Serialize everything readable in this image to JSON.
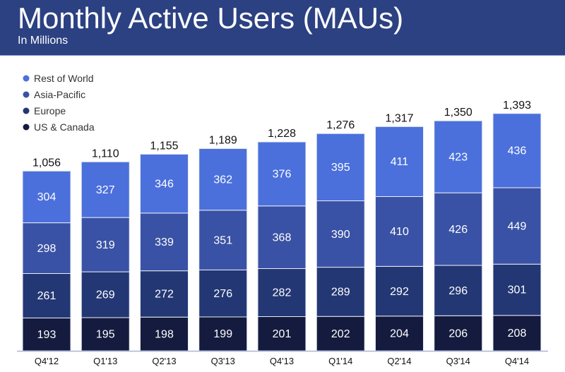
{
  "header": {
    "title": "Monthly Active Users (MAUs)",
    "subtitle": "In Millions"
  },
  "chart_data": {
    "type": "bar",
    "stacked": true,
    "title": "Monthly Active Users (MAUs)",
    "subtitle": "In Millions",
    "legend_position": "top-left",
    "grid": false,
    "categories": [
      "Q4'12",
      "Q1'13",
      "Q2'13",
      "Q3'13",
      "Q4'13",
      "Q1'14",
      "Q2'14",
      "Q3'14",
      "Q4'14"
    ],
    "totals": [
      1056,
      1110,
      1155,
      1189,
      1228,
      1276,
      1317,
      1350,
      1393
    ],
    "total_labels": [
      "1,056",
      "1,110",
      "1,155",
      "1,189",
      "1,228",
      "1,276",
      "1,317",
      "1,350",
      "1,393"
    ],
    "series": [
      {
        "name": "US & Canada",
        "color": "#141b3e",
        "values": [
          193,
          195,
          198,
          199,
          201,
          202,
          204,
          206,
          208
        ]
      },
      {
        "name": "Europe",
        "color": "#233774",
        "values": [
          261,
          269,
          272,
          276,
          282,
          289,
          292,
          296,
          301
        ]
      },
      {
        "name": "Asia-Pacific",
        "color": "#3a52a5",
        "values": [
          298,
          319,
          339,
          351,
          368,
          390,
          410,
          426,
          449
        ]
      },
      {
        "name": "Rest of World",
        "color": "#4b70dc",
        "values": [
          304,
          327,
          346,
          362,
          376,
          395,
          411,
          423,
          436
        ]
      }
    ],
    "legend_order": [
      "Rest of World",
      "Asia-Pacific",
      "Europe",
      "US & Canada"
    ]
  }
}
